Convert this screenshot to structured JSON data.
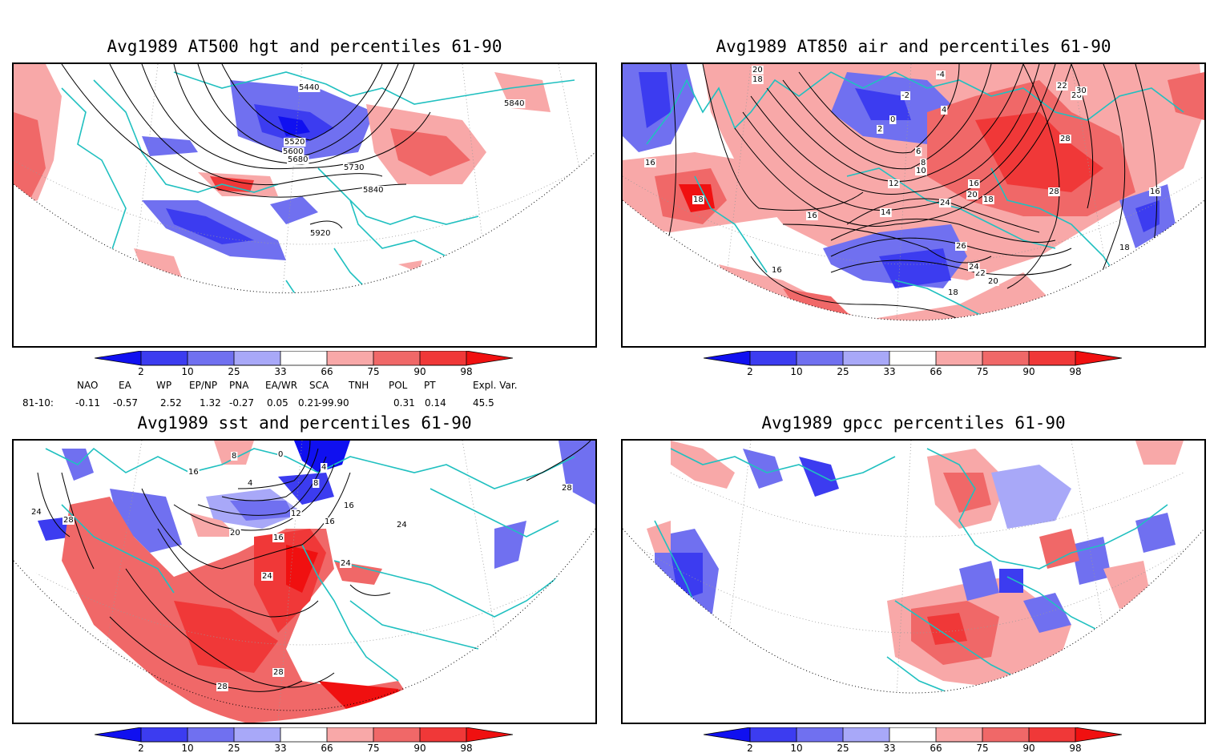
{
  "panels": {
    "p1": {
      "title": "Avg1989 AT500 hgt and percentiles 61-90",
      "contour_labels": [
        "5440",
        "5520",
        "5600",
        "5680",
        "5730",
        "5840",
        "5840",
        "5920"
      ]
    },
    "p2": {
      "title": "Avg1989 AT850 air and percentiles 61-90",
      "contour_labels": [
        "20",
        "18",
        "-4",
        "-2",
        "0",
        "2",
        "4",
        "6",
        "8",
        "10",
        "12",
        "14",
        "16",
        "16",
        "16",
        "16",
        "16",
        "18",
        "18",
        "18",
        "18",
        "20",
        "20",
        "22",
        "22",
        "24",
        "24",
        "26",
        "26",
        "28",
        "28",
        "30",
        "16"
      ]
    },
    "p3": {
      "title": "Avg1989 sst and percentiles 61-90",
      "contour_labels": [
        "24",
        "28",
        "16",
        "8",
        "4",
        "0",
        "4",
        "8",
        "12",
        "16",
        "16",
        "20",
        "16",
        "24",
        "24",
        "28",
        "28",
        "24",
        "28"
      ]
    },
    "p4": {
      "title": "Avg1989 gpcc percentiles 61-90"
    }
  },
  "colorbar": {
    "ticks": [
      "2",
      "10",
      "25",
      "33",
      "66",
      "75",
      "90",
      "98"
    ],
    "colors": {
      "below_2": "#1010f0",
      "b2_10": "#3c3cf0",
      "b10_25": "#7070f0",
      "b25_33": "#a8a8f8",
      "neutral": "#ffffff",
      "a66_75": "#f8a8a8",
      "a75_90": "#f06868",
      "a90_98": "#f03838",
      "above_98": "#f01010"
    }
  },
  "indices": {
    "headers": [
      "NAO",
      "EA",
      "WP",
      "EP/NP",
      "PNA",
      "EA/WR",
      "SCA",
      "TNH",
      "POL",
      "PT",
      "Expl. Var."
    ],
    "row_label": "81-10:",
    "values": [
      "-0.11",
      "-0.57",
      "2.52",
      "1.32",
      "-0.27",
      "0.05",
      "0.21",
      "-99.90",
      "0.31",
      "0.14",
      "45.5"
    ]
  },
  "map_colors": {
    "coast": "#20c0c0",
    "frame": "#000000"
  }
}
